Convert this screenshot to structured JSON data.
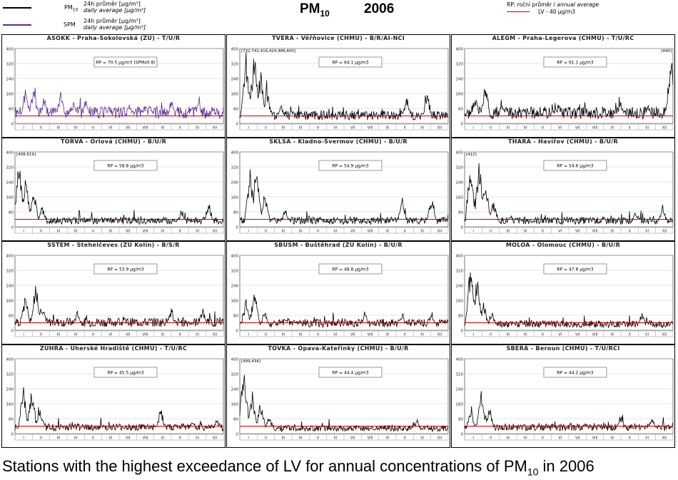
{
  "header": {
    "legend": [
      {
        "symbol_label": "PM",
        "symbol_sub": "10",
        "line1": "24h průměr [μg/m³]",
        "line2": "daily average [μg/m³]",
        "color": "#000000"
      },
      {
        "symbol_label": "SPM",
        "symbol_sub": "",
        "line1": "24h průměr [μg/m³]",
        "line2": "daily average [μg/m³]",
        "color": "#5b2d91"
      }
    ],
    "title_main": "PM",
    "title_sub": "10",
    "year": "2006",
    "rp_legend": {
      "line1_a": "RP: roční průměr / ",
      "line1_b": "annual average",
      "line2": "LV - 40 μg/m3",
      "lv_color": "#cc0000"
    }
  },
  "caption": {
    "text": "Stations with the highest exceedance of LV for annual concentrations of PM",
    "sub": "10",
    "suffix": " in 2006"
  },
  "chart_data": [
    {
      "type": "line",
      "title": "ASOKK - Praha-Sokolovská (ZU) - T/U/R",
      "annotation": "RP = 70.5 μg/m3 (SPMx0.8)",
      "clip_label": "",
      "ylim": [
        0,
        400
      ],
      "yticks": [
        0,
        80,
        160,
        240,
        320,
        400
      ],
      "xticks": [
        "I",
        "II",
        "III",
        "IV",
        "V",
        "VI",
        "VII",
        "VIII",
        "IX",
        "X",
        "XI",
        "XII"
      ],
      "lv": 40,
      "series_color": "#5b2d91",
      "peaks": [
        [
          0.05,
          200
        ],
        [
          0.09,
          220
        ],
        [
          0.14,
          150
        ],
        [
          0.22,
          180
        ],
        [
          0.28,
          120
        ],
        [
          0.34,
          150
        ],
        [
          0.45,
          100
        ],
        [
          0.55,
          130
        ],
        [
          0.65,
          110
        ],
        [
          0.75,
          140
        ],
        [
          0.88,
          130
        ],
        [
          0.95,
          100
        ]
      ],
      "base": 60,
      "seed": 1
    },
    {
      "type": "line",
      "title": "TVERA - Věřňovice (CHMU) - B/R/AI-NCI",
      "annotation": "RP = 64.1 μg/m3",
      "clip_label": "[732,742,416,424,489,400]",
      "ylim": [
        0,
        400
      ],
      "yticks": [
        0,
        80,
        160,
        240,
        320,
        400
      ],
      "xticks": [
        "I",
        "II",
        "III",
        "IV",
        "V",
        "VI",
        "VII",
        "VIII",
        "IX",
        "X",
        "XI",
        "XII"
      ],
      "lv": 40,
      "series_color": "#000000",
      "peaks": [
        [
          0.03,
          400
        ],
        [
          0.07,
          400
        ],
        [
          0.1,
          300
        ],
        [
          0.13,
          200
        ],
        [
          0.2,
          110
        ],
        [
          0.8,
          160
        ],
        [
          0.9,
          170
        ]
      ],
      "base": 45,
      "seed": 2
    },
    {
      "type": "line",
      "title": "ALEGM - Praha-Legerova (CHMU) - T/U/RC",
      "annotation": "RP = 61.1 μg/m3",
      "clip_label": "[440]",
      "ylim": [
        0,
        400
      ],
      "yticks": [
        0,
        80,
        160,
        240,
        320,
        400
      ],
      "xticks": [
        "I",
        "II",
        "III",
        "IV",
        "V",
        "VI",
        "VII",
        "VIII",
        "IX",
        "X",
        "XI",
        "XII"
      ],
      "lv": 40,
      "series_color": "#000000",
      "peaks": [
        [
          0.05,
          160
        ],
        [
          0.1,
          230
        ],
        [
          0.2,
          100
        ],
        [
          0.45,
          110
        ],
        [
          0.75,
          130
        ],
        [
          0.88,
          120
        ],
        [
          0.99,
          400
        ]
      ],
      "base": 60,
      "seed": 3
    },
    {
      "type": "line",
      "title": "TORVA - Orlová (CHMU) - B/U/R",
      "annotation": "RP = 58.8 μg/m3",
      "clip_label": "[408,619]",
      "ylim": [
        0,
        400
      ],
      "yticks": [
        0,
        80,
        160,
        240,
        320,
        400
      ],
      "xticks": [
        "I",
        "II",
        "III",
        "IV",
        "V",
        "VI",
        "VII",
        "VIII",
        "IX",
        "X",
        "XI",
        "XII"
      ],
      "lv": 40,
      "series_color": "#000000",
      "peaks": [
        [
          0.02,
          400
        ],
        [
          0.05,
          300
        ],
        [
          0.09,
          220
        ],
        [
          0.13,
          120
        ],
        [
          0.8,
          100
        ],
        [
          0.93,
          140
        ]
      ],
      "base": 35,
      "seed": 4
    },
    {
      "type": "line",
      "title": "SKLSA - Kladno-Švermov (CHMU) - B/U/R",
      "annotation": "RP = 54.9 μg/m3",
      "clip_label": "",
      "ylim": [
        0,
        400
      ],
      "yticks": [
        0,
        80,
        160,
        240,
        320,
        400
      ],
      "xticks": [
        "I",
        "II",
        "III",
        "IV",
        "V",
        "VI",
        "VII",
        "VIII",
        "IX",
        "X",
        "XI",
        "XII"
      ],
      "lv": 40,
      "series_color": "#000000",
      "peaks": [
        [
          0.05,
          330
        ],
        [
          0.08,
          360
        ],
        [
          0.12,
          200
        ],
        [
          0.22,
          110
        ],
        [
          0.78,
          160
        ],
        [
          0.92,
          170
        ]
      ],
      "base": 35,
      "seed": 5
    },
    {
      "type": "line",
      "title": "THARA - Havířov (CHMU) - B/U/R",
      "annotation": "RP = 54.6 μg/m3",
      "clip_label": "[412]",
      "ylim": [
        0,
        400
      ],
      "yticks": [
        0,
        80,
        160,
        240,
        320,
        400
      ],
      "xticks": [
        "I",
        "II",
        "III",
        "IV",
        "V",
        "VI",
        "VII",
        "VIII",
        "IX",
        "X",
        "XI",
        "XII"
      ],
      "lv": 40,
      "series_color": "#000000",
      "peaks": [
        [
          0.03,
          400
        ],
        [
          0.07,
          360
        ],
        [
          0.1,
          280
        ],
        [
          0.14,
          150
        ],
        [
          0.82,
          100
        ],
        [
          0.95,
          120
        ]
      ],
      "base": 35,
      "seed": 6
    },
    {
      "type": "line",
      "title": "SSTEM - Stehelčeves (ZU Kolín) - B/S/R",
      "annotation": "RP = 53.9 μg/m3",
      "clip_label": "",
      "ylim": [
        0,
        400
      ],
      "yticks": [
        0,
        80,
        160,
        240,
        320,
        400
      ],
      "xticks": [
        "I",
        "II",
        "III",
        "IV",
        "V",
        "VI",
        "VII",
        "VIII",
        "IX",
        "X",
        "XI",
        "XII"
      ],
      "lv": 40,
      "series_color": "#000000",
      "peaks": [
        [
          0.05,
          200
        ],
        [
          0.1,
          280
        ],
        [
          0.13,
          150
        ],
        [
          0.3,
          110
        ],
        [
          0.75,
          120
        ],
        [
          0.9,
          130
        ]
      ],
      "base": 45,
      "seed": 7
    },
    {
      "type": "line",
      "title": "SBUSM - Buštěhrad (ZU Kolín) - B/U/R",
      "annotation": "RP = 48.8 μg/m3",
      "clip_label": "",
      "ylim": [
        0,
        400
      ],
      "yticks": [
        0,
        80,
        160,
        240,
        320,
        400
      ],
      "xticks": [
        "I",
        "II",
        "III",
        "IV",
        "V",
        "VI",
        "VII",
        "VIII",
        "IX",
        "X",
        "XI",
        "XII"
      ],
      "lv": 40,
      "series_color": "#000000",
      "peaks": [
        [
          0.03,
          170
        ],
        [
          0.07,
          230
        ],
        [
          0.12,
          120
        ],
        [
          0.6,
          110
        ],
        [
          0.78,
          100
        ],
        [
          0.92,
          110
        ]
      ],
      "base": 40,
      "seed": 8
    },
    {
      "type": "line",
      "title": "MOLOA - Olomouc (CHMU) - B/U/R",
      "annotation": "RP = 47.8 μg/m3",
      "clip_label": "",
      "ylim": [
        0,
        400
      ],
      "yticks": [
        0,
        80,
        160,
        240,
        320,
        400
      ],
      "xticks": [
        "I",
        "II",
        "III",
        "IV",
        "V",
        "VI",
        "VII",
        "VIII",
        "IX",
        "X",
        "XI",
        "XII"
      ],
      "lv": 40,
      "series_color": "#000000",
      "peaks": [
        [
          0.03,
          390
        ],
        [
          0.06,
          300
        ],
        [
          0.09,
          170
        ],
        [
          0.13,
          110
        ],
        [
          0.85,
          100
        ]
      ],
      "base": 35,
      "seed": 9
    },
    {
      "type": "line",
      "title": "ZUHRA - Uherské Hradiště (CHMU) - T/U/RC",
      "annotation": "RP = 45.5 μg/m3",
      "clip_label": "",
      "ylim": [
        0,
        400
      ],
      "yticks": [
        0,
        80,
        160,
        240,
        320,
        400
      ],
      "xticks": [
        "I",
        "II",
        "III",
        "IV",
        "V",
        "VI",
        "VII",
        "VIII",
        "IX",
        "X",
        "XI",
        "XII"
      ],
      "lv": 40,
      "series_color": "#000000",
      "peaks": [
        [
          0.04,
          260
        ],
        [
          0.08,
          260
        ],
        [
          0.12,
          150
        ],
        [
          0.7,
          140
        ],
        [
          0.85,
          80
        ],
        [
          0.97,
          90
        ]
      ],
      "base": 35,
      "seed": 10
    },
    {
      "type": "line",
      "title": "TOVKA - Opava-Kateřinky (CHMU) - B/U/R",
      "annotation": "RP = 44.4 μg/m3",
      "clip_label": "[499,434]",
      "ylim": [
        0,
        400
      ],
      "yticks": [
        0,
        80,
        160,
        240,
        320,
        400
      ],
      "xticks": [
        "I",
        "II",
        "III",
        "IV",
        "V",
        "VI",
        "VII",
        "VIII",
        "IX",
        "X",
        "XI",
        "XII"
      ],
      "lv": 40,
      "series_color": "#000000",
      "peaks": [
        [
          0.02,
          400
        ],
        [
          0.06,
          230
        ],
        [
          0.1,
          180
        ],
        [
          0.14,
          110
        ],
        [
          0.85,
          80
        ]
      ],
      "base": 30,
      "seed": 11
    },
    {
      "type": "line",
      "title": "SBERA - Beroun (CHMU) - T/U/RCI",
      "annotation": "RP = 44.2 μg/m3",
      "clip_label": "",
      "ylim": [
        0,
        400
      ],
      "yticks": [
        0,
        80,
        160,
        240,
        320,
        400
      ],
      "xticks": [
        "I",
        "II",
        "III",
        "IV",
        "V",
        "VI",
        "VII",
        "VIII",
        "IX",
        "X",
        "XI",
        "XII"
      ],
      "lv": 40,
      "series_color": "#000000",
      "peaks": [
        [
          0.03,
          140
        ],
        [
          0.08,
          260
        ],
        [
          0.12,
          160
        ],
        [
          0.75,
          100
        ],
        [
          0.9,
          90
        ]
      ],
      "base": 35,
      "seed": 12
    }
  ]
}
